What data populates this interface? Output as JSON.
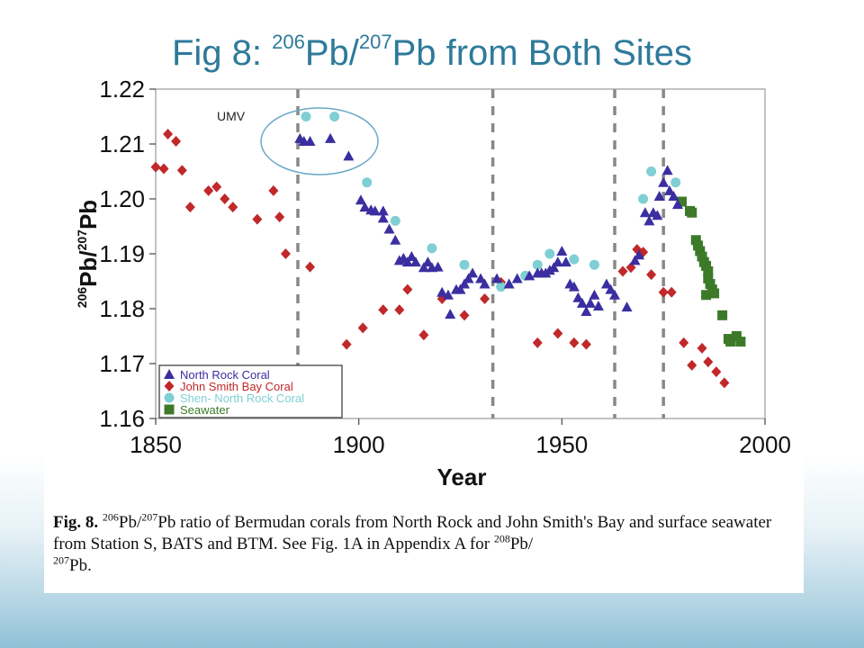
{
  "slide": {
    "title_prefix": "Fig 8: ",
    "title_sup1": "206",
    "title_mid": "Pb/",
    "title_sup2": "207",
    "title_suffix": "Pb from Both Sites"
  },
  "caption": {
    "label": "Fig. 8.",
    "sup1": "206",
    "t1": "Pb/",
    "sup2": "207",
    "t2": "Pb ratio of Bermudan corals from North Rock and John Smith's Bay and surface seawater from Station S, BATS and BTM. See Fig. 1A in Appendix A for ",
    "sup3": "208",
    "t3": "Pb/",
    "sup4": "207",
    "t4": "Pb."
  },
  "annotation": "UMV",
  "colors": {
    "title": "#2e7a9b",
    "north_rock": "#3b2ea0",
    "john_smith": "#c0282a",
    "shen": "#7fcfd4",
    "seawater": "#3c7a2a",
    "dashed_lines": "#888888"
  },
  "chart_data": {
    "type": "scatter",
    "xlabel": "Year",
    "ylabel_parts": [
      "206",
      "Pb/",
      "207",
      "Pb"
    ],
    "xlim": [
      1850,
      2000
    ],
    "ylim": [
      1.16,
      1.22
    ],
    "x_ticks": [
      "1850",
      "1900",
      "1950",
      "2000"
    ],
    "x_tick_values": [
      1850,
      1900,
      1950,
      2000
    ],
    "y_ticks": [
      "1.16",
      "1.17",
      "1.18",
      "1.19",
      "1.20",
      "1.21",
      "1.22"
    ],
    "y_tick_values": [
      1.16,
      1.17,
      1.18,
      1.19,
      1.2,
      1.21,
      1.22
    ],
    "vertical_dashed_lines": [
      1885,
      1933,
      1963,
      1975
    ],
    "legend_position": "bottom-left",
    "series": [
      {
        "name": "North Rock Coral",
        "marker": "triangle",
        "color": "#3b2ea0",
        "points": [
          [
            1885.5,
            1.211
          ],
          [
            1886.5,
            1.2105
          ],
          [
            1888,
            1.2105
          ],
          [
            1893,
            1.211
          ],
          [
            1897.5,
            1.2078
          ],
          [
            1900.5,
            1.1998
          ],
          [
            1901.5,
            1.1985
          ],
          [
            1903,
            1.198
          ],
          [
            1904,
            1.1978
          ],
          [
            1906,
            1.1978
          ],
          [
            1906,
            1.1965
          ],
          [
            1907.5,
            1.1945
          ],
          [
            1909,
            1.1925
          ],
          [
            1910,
            1.1888
          ],
          [
            1911,
            1.1892
          ],
          [
            1912,
            1.1885
          ],
          [
            1913,
            1.1895
          ],
          [
            1914,
            1.1885
          ],
          [
            1916,
            1.1875
          ],
          [
            1917,
            1.1885
          ],
          [
            1918,
            1.1875
          ],
          [
            1919.5,
            1.1876
          ],
          [
            1920.5,
            1.183
          ],
          [
            1922,
            1.1825
          ],
          [
            1922.5,
            1.179
          ],
          [
            1924,
            1.1835
          ],
          [
            1925,
            1.1835
          ],
          [
            1926,
            1.1845
          ],
          [
            1927,
            1.1855
          ],
          [
            1928,
            1.1865
          ],
          [
            1930,
            1.1855
          ],
          [
            1931,
            1.1845
          ],
          [
            1934,
            1.1855
          ],
          [
            1937,
            1.1845
          ],
          [
            1939,
            1.1855
          ],
          [
            1942,
            1.186
          ],
          [
            1944,
            1.1865
          ],
          [
            1945,
            1.1865
          ],
          [
            1946,
            1.1865
          ],
          [
            1947,
            1.187
          ],
          [
            1948,
            1.1875
          ],
          [
            1949,
            1.1885
          ],
          [
            1950,
            1.1905
          ],
          [
            1951,
            1.1885
          ],
          [
            1952,
            1.1845
          ],
          [
            1953,
            1.184
          ],
          [
            1954,
            1.182
          ],
          [
            1955,
            1.181
          ],
          [
            1956,
            1.1795
          ],
          [
            1957,
            1.181
          ],
          [
            1958,
            1.1825
          ],
          [
            1959,
            1.1805
          ],
          [
            1961,
            1.1845
          ],
          [
            1962,
            1.1835
          ],
          [
            1963,
            1.1825
          ],
          [
            1966,
            1.1803
          ],
          [
            1968,
            1.1888
          ],
          [
            1969,
            1.1898
          ],
          [
            1970.5,
            1.1975
          ],
          [
            1971.5,
            1.196
          ],
          [
            1972.5,
            1.1975
          ],
          [
            1973.5,
            1.197
          ],
          [
            1974,
            1.2005
          ],
          [
            1975,
            1.203
          ],
          [
            1976,
            1.2052
          ],
          [
            1976.5,
            1.2015
          ],
          [
            1977.5,
            1.2005
          ],
          [
            1978.5,
            1.199
          ]
        ]
      },
      {
        "name": "John Smith Bay Coral",
        "marker": "diamond",
        "color": "#c0282a",
        "points": [
          [
            1850,
            1.2058
          ],
          [
            1852,
            1.2055
          ],
          [
            1853,
            1.2118
          ],
          [
            1855,
            1.2105
          ],
          [
            1856.5,
            1.2052
          ],
          [
            1858.5,
            1.1985
          ],
          [
            1863,
            1.2015
          ],
          [
            1865,
            1.2022
          ],
          [
            1867,
            1.2
          ],
          [
            1869,
            1.1985
          ],
          [
            1875,
            1.1963
          ],
          [
            1879,
            1.2015
          ],
          [
            1880.5,
            1.1967
          ],
          [
            1882,
            1.19
          ],
          [
            1888,
            1.1876
          ],
          [
            1897,
            1.1735
          ],
          [
            1901,
            1.1765
          ],
          [
            1906,
            1.1798
          ],
          [
            1910,
            1.1798
          ],
          [
            1912,
            1.1835
          ],
          [
            1916,
            1.1752
          ],
          [
            1920.5,
            1.1818
          ],
          [
            1926,
            1.1788
          ],
          [
            1931,
            1.1818
          ],
          [
            1935,
            1.1848
          ],
          [
            1944,
            1.1738
          ],
          [
            1949,
            1.1755
          ],
          [
            1953,
            1.1738
          ],
          [
            1956,
            1.1735
          ],
          [
            1965,
            1.1868
          ],
          [
            1967,
            1.1875
          ],
          [
            1968.5,
            1.1908
          ],
          [
            1970,
            1.1903
          ],
          [
            1972,
            1.1862
          ],
          [
            1975,
            1.183
          ],
          [
            1977,
            1.183
          ],
          [
            1980,
            1.1738
          ],
          [
            1982,
            1.1697
          ],
          [
            1984.5,
            1.1728
          ],
          [
            1986,
            1.1703
          ],
          [
            1988,
            1.1685
          ],
          [
            1990,
            1.1665
          ]
        ]
      },
      {
        "name": "Shen- North Rock Coral",
        "marker": "circle",
        "color": "#7fcfd4",
        "points": [
          [
            1887,
            1.215
          ],
          [
            1894,
            1.215
          ],
          [
            1902,
            1.203
          ],
          [
            1909,
            1.196
          ],
          [
            1918,
            1.191
          ],
          [
            1926,
            1.188
          ],
          [
            1935,
            1.184
          ],
          [
            1941,
            1.186
          ],
          [
            1944,
            1.188
          ],
          [
            1947,
            1.19
          ],
          [
            1953,
            1.189
          ],
          [
            1958,
            1.188
          ],
          [
            1970,
            1.2
          ],
          [
            1972,
            1.205
          ],
          [
            1978,
            1.203
          ]
        ]
      },
      {
        "name": "Seawater",
        "marker": "square",
        "color": "#3c7a2a",
        "points": [
          [
            1979.5,
            1.1995
          ],
          [
            1981.5,
            1.1978
          ],
          [
            1982,
            1.1975
          ],
          [
            1983,
            1.1925
          ],
          [
            1983.5,
            1.1915
          ],
          [
            1984,
            1.1905
          ],
          [
            1984.5,
            1.1895
          ],
          [
            1985,
            1.1885
          ],
          [
            1985.5,
            1.1878
          ],
          [
            1986,
            1.1868
          ],
          [
            1986,
            1.1855
          ],
          [
            1986.5,
            1.1845
          ],
          [
            1987,
            1.1835
          ],
          [
            1985.5,
            1.1825
          ],
          [
            1987.5,
            1.1828
          ],
          [
            1989.5,
            1.1788
          ],
          [
            1991,
            1.1745
          ],
          [
            1991.5,
            1.174
          ],
          [
            1993,
            1.175
          ],
          [
            1994,
            1.174
          ]
        ]
      }
    ]
  }
}
